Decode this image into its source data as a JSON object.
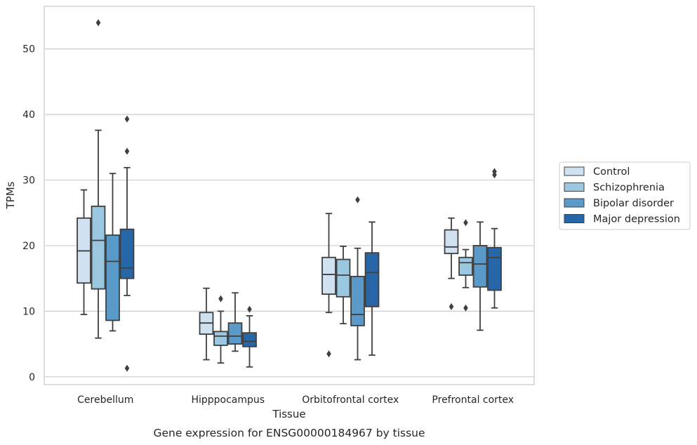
{
  "chart_data": {
    "type": "box",
    "title": "",
    "caption": "Gene expression for ENSG00000184967 by tissue",
    "xlabel": "Tissue",
    "ylabel": "TPMs",
    "ylim": [
      -1.2,
      56.5
    ],
    "yticks": [
      0,
      10,
      20,
      30,
      40,
      50
    ],
    "grid": "horizontal",
    "legend_position": "right",
    "categories": [
      "Cerebellum",
      "Hipppocampus",
      "Orbitofrontal cortex",
      "Prefrontal cortex"
    ],
    "series": [
      {
        "name": "Control",
        "color": "#d0e1f2",
        "boxes": [
          {
            "whisker_low": 9.5,
            "q1": 14.3,
            "median": 19.2,
            "q3": 24.2,
            "whisker_high": 28.5,
            "outliers": []
          },
          {
            "whisker_low": 2.6,
            "q1": 6.5,
            "median": 8.2,
            "q3": 9.8,
            "whisker_high": 13.5,
            "outliers": []
          },
          {
            "whisker_low": 9.8,
            "q1": 12.6,
            "median": 15.6,
            "q3": 18.2,
            "whisker_high": 24.9,
            "outliers": [
              3.5
            ]
          },
          {
            "whisker_low": 15.0,
            "q1": 18.8,
            "median": 19.8,
            "q3": 22.4,
            "whisker_high": 24.2,
            "outliers": [
              10.7
            ]
          }
        ]
      },
      {
        "name": "Schizophrenia",
        "color": "#9ac8e0",
        "boxes": [
          {
            "whisker_low": 5.9,
            "q1": 13.4,
            "median": 20.8,
            "q3": 26.0,
            "whisker_high": 37.6,
            "outliers": [
              54.0
            ]
          },
          {
            "whisker_low": 2.1,
            "q1": 4.8,
            "median": 6.2,
            "q3": 6.9,
            "whisker_high": 10.0,
            "outliers": [
              11.9
            ]
          },
          {
            "whisker_low": 8.1,
            "q1": 12.2,
            "median": 15.5,
            "q3": 17.9,
            "whisker_high": 19.9,
            "outliers": []
          },
          {
            "whisker_low": 13.6,
            "q1": 15.5,
            "median": 17.4,
            "q3": 18.2,
            "whisker_high": 19.4,
            "outliers": [
              10.5,
              23.5
            ]
          }
        ]
      },
      {
        "name": "Bipolar disorder",
        "color": "#5a9ac8",
        "boxes": [
          {
            "whisker_low": 7.0,
            "q1": 8.6,
            "median": 17.6,
            "q3": 21.6,
            "whisker_high": 31.0,
            "outliers": []
          },
          {
            "whisker_low": 3.9,
            "q1": 5.0,
            "median": 6.2,
            "q3": 8.2,
            "whisker_high": 12.8,
            "outliers": []
          },
          {
            "whisker_low": 2.6,
            "q1": 7.8,
            "median": 9.5,
            "q3": 15.3,
            "whisker_high": 19.6,
            "outliers": [
              27.0
            ]
          },
          {
            "whisker_low": 7.1,
            "q1": 13.7,
            "median": 17.2,
            "q3": 20.0,
            "whisker_high": 23.6,
            "outliers": []
          }
        ]
      },
      {
        "name": "Major depression",
        "color": "#2767a8",
        "boxes": [
          {
            "whisker_low": 12.4,
            "q1": 15.0,
            "median": 16.6,
            "q3": 22.5,
            "whisker_high": 31.9,
            "outliers": [
              1.3,
              34.4,
              39.3
            ]
          },
          {
            "whisker_low": 1.5,
            "q1": 4.6,
            "median": 5.4,
            "q3": 6.7,
            "whisker_high": 9.3,
            "outliers": [
              10.3
            ]
          },
          {
            "whisker_low": 3.3,
            "q1": 10.7,
            "median": 15.9,
            "q3": 18.9,
            "whisker_high": 23.6,
            "outliers": []
          },
          {
            "whisker_low": 10.5,
            "q1": 13.2,
            "median": 18.2,
            "q3": 19.7,
            "whisker_high": 22.6,
            "outliers": [
              30.8,
              31.3
            ]
          }
        ]
      }
    ]
  }
}
